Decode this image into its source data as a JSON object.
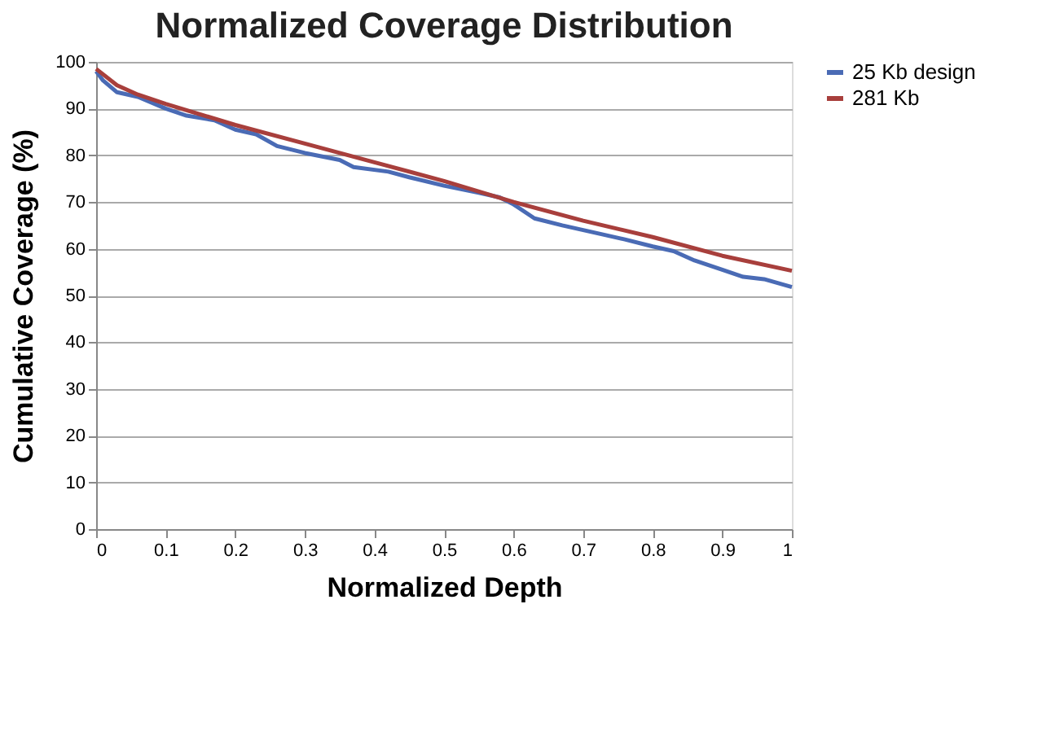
{
  "chart_data": {
    "type": "line",
    "title": "Normalized Coverage Distribution",
    "xlabel": "Normalized Depth",
    "ylabel": "Cumulative Coverage (%)",
    "xlim": [
      0,
      1
    ],
    "xticks": [
      0,
      0.1,
      0.2,
      0.3,
      0.4,
      0.5,
      0.6,
      0.7,
      0.8,
      0.9,
      1
    ],
    "ylim": [
      0,
      100
    ],
    "yticks": [
      0,
      10,
      20,
      30,
      40,
      50,
      60,
      70,
      80,
      90,
      100
    ],
    "grid": "y",
    "legend": "right",
    "marker": "none",
    "line_style": "solid",
    "series": [
      {
        "name": "25 Kb design",
        "color": "#4a6bb5",
        "x": [
          0,
          0.01,
          0.03,
          0.06,
          0.1,
          0.13,
          0.17,
          0.2,
          0.23,
          0.26,
          0.3,
          0.35,
          0.37,
          0.42,
          0.45,
          0.5,
          0.55,
          0.58,
          0.6,
          0.63,
          0.67,
          0.7,
          0.73,
          0.76,
          0.8,
          0.83,
          0.86,
          0.9,
          0.93,
          0.96,
          1
        ],
        "values": [
          98,
          96,
          93.5,
          92.5,
          90,
          88.5,
          87.5,
          85.5,
          84.5,
          82,
          80.5,
          79,
          77.5,
          76.5,
          75.3,
          73.5,
          72,
          71,
          69.5,
          66.5,
          65,
          64,
          63,
          62,
          60.5,
          59.5,
          57.5,
          55.5,
          54,
          53.5,
          51.8
        ]
      },
      {
        "name": "281 Kb",
        "color": "#a83f3c",
        "x": [
          0,
          0.03,
          0.06,
          0.1,
          0.2,
          0.3,
          0.4,
          0.5,
          0.6,
          0.7,
          0.8,
          0.9,
          1
        ],
        "values": [
          98.5,
          95,
          93,
          91,
          86.5,
          82.5,
          78.5,
          74.5,
          70,
          66,
          62.5,
          58.5,
          55.3
        ]
      }
    ]
  }
}
